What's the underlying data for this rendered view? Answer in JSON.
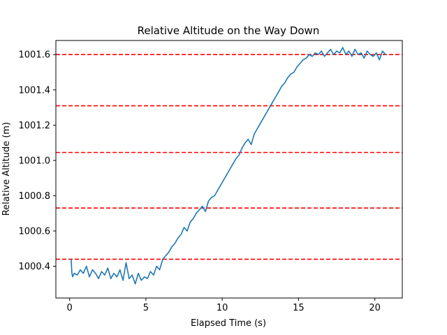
{
  "chart_data": {
    "type": "line",
    "title": "Relative Altitude on the Way Down",
    "xlabel": "Elapsed Time (s)",
    "ylabel": "Relative Altitude (m)",
    "xlim": [
      -0.9,
      21.8
    ],
    "ylim": [
      1000.22,
      1001.68
    ],
    "x_ticks": [
      0,
      5,
      10,
      15,
      20
    ],
    "y_ticks": [
      1000.4,
      1000.6,
      1000.8,
      1001.0,
      1001.2,
      1001.4,
      1001.6
    ],
    "y_tick_labels": [
      "1000.4",
      "1000.6",
      "1000.8",
      "1001.0",
      "1001.2",
      "1001.4",
      "1001.6"
    ],
    "grid": false,
    "series": [
      {
        "color": "#1f77b4",
        "x": [
          0.1,
          0.15,
          0.2,
          0.3,
          0.5,
          0.7,
          0.9,
          1.1,
          1.3,
          1.5,
          1.7,
          1.9,
          2.1,
          2.3,
          2.5,
          2.7,
          2.9,
          3.1,
          3.3,
          3.5,
          3.7,
          3.9,
          4.1,
          4.3,
          4.5,
          4.7,
          4.9,
          5.1,
          5.3,
          5.5,
          5.7,
          5.9,
          6.1,
          6.3,
          6.5,
          6.7,
          6.9,
          7.1,
          7.3,
          7.5,
          7.7,
          7.9,
          8.1,
          8.3,
          8.5,
          8.7,
          8.9,
          9.1,
          9.3,
          9.5,
          9.7,
          9.9,
          10.1,
          10.3,
          10.5,
          10.7,
          10.9,
          11.1,
          11.3,
          11.5,
          11.7,
          11.9,
          12.1,
          12.3,
          12.5,
          12.7,
          12.9,
          13.1,
          13.3,
          13.5,
          13.7,
          13.9,
          14.1,
          14.3,
          14.5,
          14.7,
          14.9,
          15.1,
          15.3,
          15.5,
          15.7,
          15.9,
          16.1,
          16.3,
          16.5,
          16.7,
          16.9,
          17.1,
          17.3,
          17.5,
          17.7,
          17.9,
          18.1,
          18.3,
          18.5,
          18.7,
          18.9,
          19.1,
          19.3,
          19.5,
          19.7,
          19.9,
          20.1,
          20.3,
          20.5,
          20.7
        ],
        "values": [
          1000.44,
          1000.36,
          1000.34,
          1000.36,
          1000.35,
          1000.38,
          1000.36,
          1000.4,
          1000.34,
          1000.38,
          1000.36,
          1000.33,
          1000.37,
          1000.35,
          1000.39,
          1000.33,
          1000.36,
          1000.34,
          1000.38,
          1000.32,
          1000.42,
          1000.33,
          1000.35,
          1000.3,
          1000.36,
          1000.32,
          1000.34,
          1000.33,
          1000.37,
          1000.35,
          1000.4,
          1000.38,
          1000.44,
          1000.46,
          1000.48,
          1000.51,
          1000.53,
          1000.56,
          1000.58,
          1000.62,
          1000.6,
          1000.65,
          1000.67,
          1000.7,
          1000.72,
          1000.74,
          1000.71,
          1000.77,
          1000.79,
          1000.8,
          1000.83,
          1000.86,
          1000.89,
          1000.92,
          1000.95,
          1000.98,
          1001.01,
          1001.03,
          1001.07,
          1001.1,
          1001.12,
          1001.09,
          1001.15,
          1001.18,
          1001.21,
          1001.24,
          1001.27,
          1001.3,
          1001.33,
          1001.36,
          1001.39,
          1001.42,
          1001.44,
          1001.47,
          1001.49,
          1001.5,
          1001.53,
          1001.55,
          1001.57,
          1001.58,
          1001.6,
          1001.59,
          1001.61,
          1001.6,
          1001.62,
          1001.59,
          1001.61,
          1001.63,
          1001.6,
          1001.62,
          1001.61,
          1001.64,
          1001.6,
          1001.62,
          1001.59,
          1001.63,
          1001.6,
          1001.61,
          1001.58,
          1001.62,
          1001.6,
          1001.59,
          1001.61,
          1001.57,
          1001.62,
          1001.6
        ]
      }
    ],
    "hlines": [
      {
        "y": 1000.44,
        "color": "#ff0000",
        "style": "dashed"
      },
      {
        "y": 1000.73,
        "color": "#ff0000",
        "style": "dashed"
      },
      {
        "y": 1001.045,
        "color": "#ff0000",
        "style": "dashed"
      },
      {
        "y": 1001.31,
        "color": "#ff0000",
        "style": "dashed"
      },
      {
        "y": 1001.6,
        "color": "#ff0000",
        "style": "dashed"
      }
    ]
  }
}
